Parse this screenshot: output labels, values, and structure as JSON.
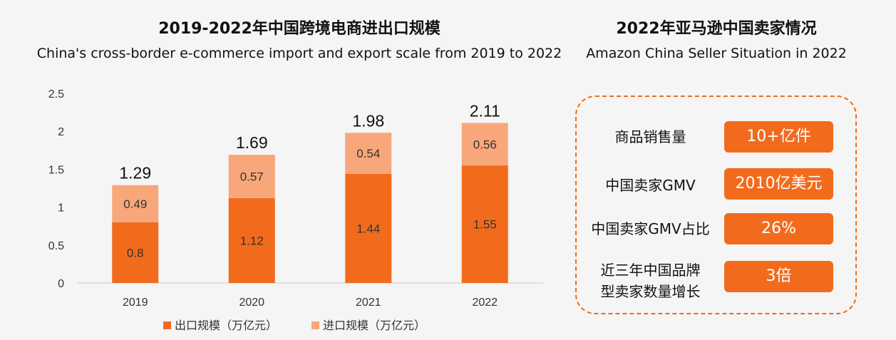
{
  "left_title_cn": "2019-2022年中国跨境电商进出口规模",
  "left_title_en": "China's cross-border e-commerce import and export scale from 2019 to 2022",
  "right_title_cn": "2022年亚马逊中国卖家情况",
  "right_title_en": "Amazon China Seller Situation in 2022",
  "chart_data": {
    "type": "bar",
    "stacked": true,
    "categories": [
      "2019",
      "2020",
      "2021",
      "2022"
    ],
    "series": [
      {
        "name": "出口规模（万亿元）",
        "values": [
          0.8,
          1.12,
          1.44,
          1.55
        ],
        "color": "#f26b1d"
      },
      {
        "name": "进口规模（万亿元）",
        "values": [
          0.49,
          0.57,
          0.54,
          0.56
        ],
        "color": "#f8a77a"
      }
    ],
    "value_labels": [
      [
        "0.8",
        "1.12",
        "1.44",
        "1.55"
      ],
      [
        "0.49",
        "0.57",
        "0.54",
        "0.56"
      ]
    ],
    "totals": [
      1.29,
      1.69,
      1.98,
      2.11
    ],
    "total_labels": [
      "1.29",
      "1.69",
      "1.98",
      "2.11"
    ],
    "yticks": [
      "0",
      "0.5",
      "1",
      "1.5",
      "2",
      "2.5"
    ],
    "ylim": [
      0,
      2.5
    ],
    "legend_position": "bottom"
  },
  "stats": [
    {
      "label": "商品销售量",
      "value": "10+亿件"
    },
    {
      "label": "中国卖家GMV",
      "value": "2010亿美元"
    },
    {
      "label": "中国卖家GMV占比",
      "value": "26%"
    },
    {
      "label": "近三年中国品牌型卖家数量增长",
      "label_lines": [
        "近三年中国品牌",
        "型卖家数量增长"
      ],
      "value": "3倍"
    }
  ]
}
